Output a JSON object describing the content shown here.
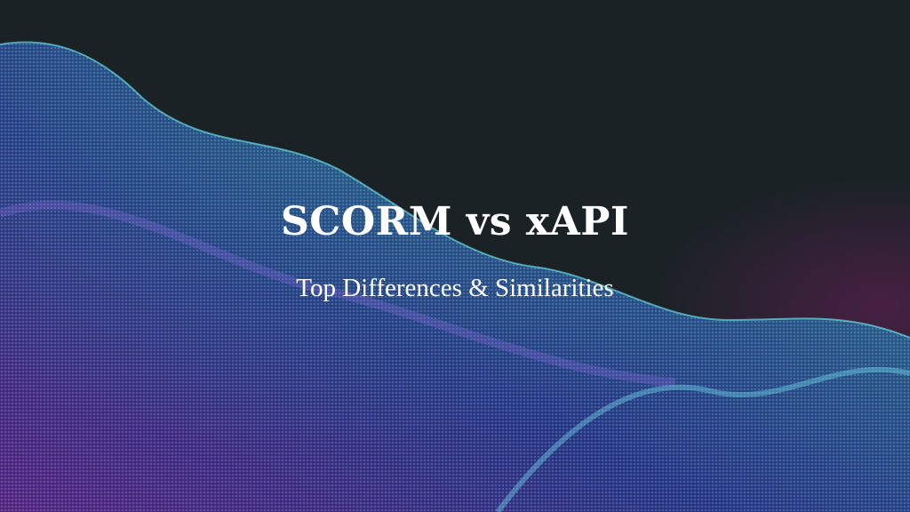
{
  "banner": {
    "title": "SCORM vs xAPI",
    "subtitle": "Top Differences & Similarities"
  },
  "colors": {
    "background": "#1b2226",
    "wave_cyan": "#3fd6e6",
    "wave_blue": "#3a5fe0",
    "wave_purple": "#8a3fd8",
    "text": "#ffffff"
  }
}
